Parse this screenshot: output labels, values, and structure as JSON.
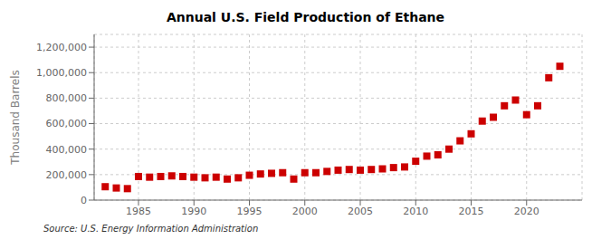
{
  "chart_data": {
    "type": "scatter",
    "title": "Annual U.S. Field Production of Ethane",
    "y_label": "Thousand Barrels",
    "annotations": [
      "Source: U.S. Energy Information Administration"
    ],
    "x": [
      1982,
      1983,
      1984,
      1985,
      1986,
      1987,
      1988,
      1989,
      1990,
      1991,
      1992,
      1993,
      1994,
      1995,
      1996,
      1997,
      1998,
      1999,
      2000,
      2001,
      2002,
      2003,
      2004,
      2005,
      2006,
      2007,
      2008,
      2009,
      2010,
      2011,
      2012,
      2013,
      2014,
      2015,
      2016,
      2017,
      2018,
      2019,
      2020,
      2021,
      2022,
      2023
    ],
    "values": [
      105000,
      95000,
      90000,
      185000,
      180000,
      185000,
      190000,
      185000,
      180000,
      175000,
      180000,
      165000,
      175000,
      195000,
      205000,
      210000,
      215000,
      165000,
      215000,
      215000,
      225000,
      235000,
      240000,
      235000,
      240000,
      245000,
      255000,
      260000,
      305000,
      345000,
      355000,
      400000,
      465000,
      520000,
      620000,
      650000,
      740000,
      785000,
      670000,
      740000,
      960000,
      1050000
    ],
    "color": "#cc0000",
    "marker": "square",
    "xlim": [
      1981,
      2025
    ],
    "xticks": [
      1985,
      1990,
      1995,
      2000,
      2005,
      2010,
      2015,
      2020
    ],
    "ylim": [
      0,
      1300000
    ],
    "yticks": [
      0,
      {
        "value": 200000,
        "label": "200,000"
      },
      {
        "value": 400000,
        "label": "400,000"
      },
      {
        "value": 600000,
        "label": "600,000"
      },
      {
        "value": 800000,
        "label": "800,000"
      },
      {
        "value": 1000000,
        "label": "1,000,000"
      },
      {
        "value": 1200000,
        "label": "1,200,000"
      }
    ],
    "grid": true
  }
}
